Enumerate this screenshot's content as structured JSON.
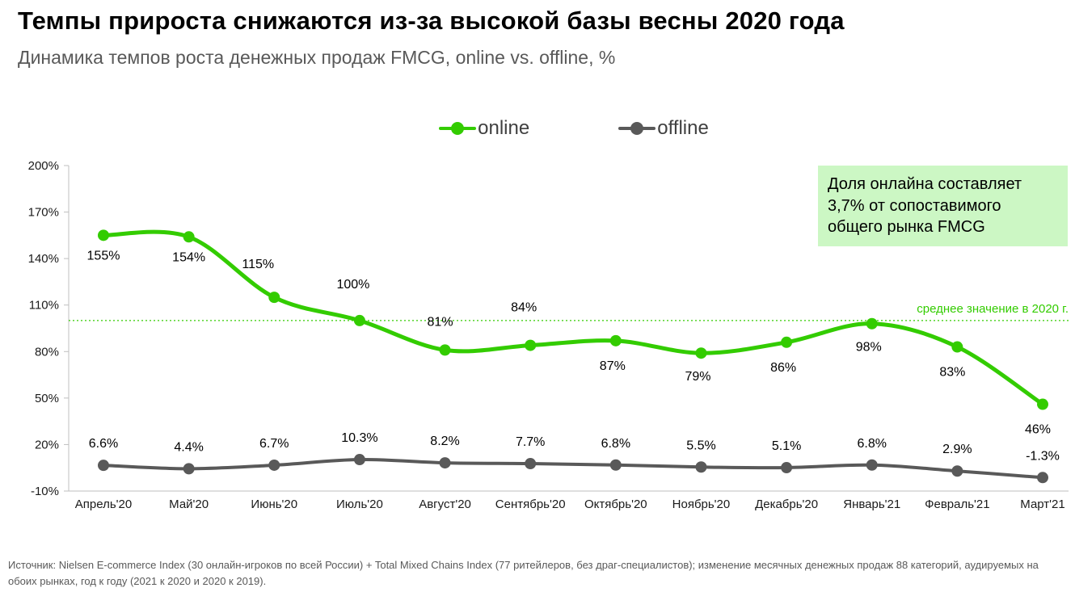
{
  "page": {
    "title": "Темпы прироста снижаются из-за высокой базы весны 2020 года",
    "subtitle": "Динамика темпов роста денежных продаж FMCG, online vs. offline, %",
    "source": "Источник: Nielsen E-commerce Index (30 онлайн-игроков по всей России) + Total Mixed Chains Index (77 ритейлеров, без драг-специалистов); изменение месячных денежных продаж 88 категорий, аудируемых на обоих рынках, год к году (2021 к 2020 и 2020 к 2019)."
  },
  "annotation": {
    "text": "Доля онлайна составляет 3,7% от сопоставимого общего рынка FMCG"
  },
  "colors": {
    "online_green": "#33cc00",
    "offline_gray": "#595959",
    "annotation_bg": "#ccf7c4",
    "axis_gray": "#bfbfbf"
  },
  "chart_data": {
    "type": "line",
    "title": "Динамика темпов роста денежных продаж FMCG, online vs. offline, %",
    "categories": [
      "Апрель'20",
      "Май'20",
      "Июнь'20",
      "Июль'20",
      "Август'20",
      "Сентябрь'20",
      "Октябрь'20",
      "Ноябрь'20",
      "Декабрь'20",
      "Январь'21",
      "Февраль'21",
      "Март'21"
    ],
    "series": [
      {
        "name": "online",
        "color": "#33cc00",
        "values": [
          155,
          154,
          115,
          100,
          81,
          84,
          87,
          79,
          86,
          98,
          83,
          46
        ],
        "labels": [
          "155%",
          "154%",
          "115%",
          "100%",
          "81%",
          "84%",
          "87%",
          "79%",
          "86%",
          "98%",
          "83%",
          "46%"
        ]
      },
      {
        "name": "offline",
        "color": "#595959",
        "values": [
          6.6,
          4.4,
          6.7,
          10.3,
          8.2,
          7.7,
          6.8,
          5.5,
          5.1,
          6.8,
          2.9,
          -1.3
        ],
        "labels": [
          "6.6%",
          "4.4%",
          "6.7%",
          "10.3%",
          "8.2%",
          "7.7%",
          "6.8%",
          "5.5%",
          "5.1%",
          "6.8%",
          "2.9%",
          "-1.3%"
        ]
      }
    ],
    "ylim": [
      -10,
      200
    ],
    "ytick_step": 30,
    "ytick_labels": [
      "200%",
      "170%",
      "140%",
      "110%",
      "80%",
      "50%",
      "20%",
      "-10%"
    ],
    "avg_line": {
      "value": 100,
      "label": "среднее значение в 2020 г.",
      "color": "#33cc00"
    },
    "legend": [
      "online",
      "offline"
    ],
    "legend_position": "top-center",
    "grid": false
  }
}
